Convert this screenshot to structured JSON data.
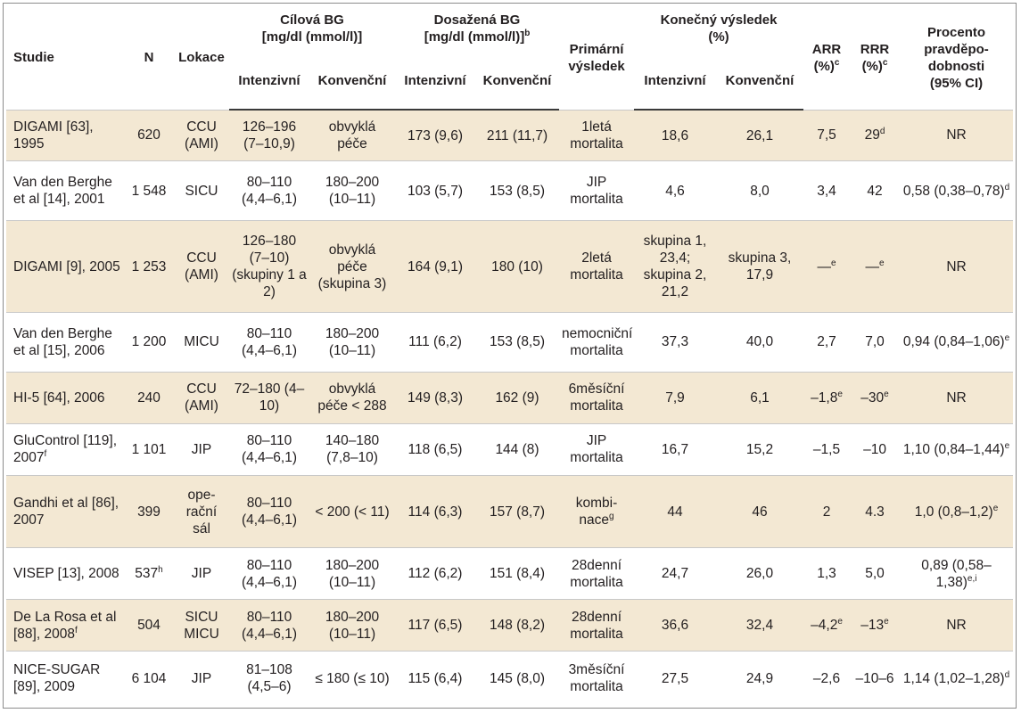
{
  "header": {
    "study": "Studie",
    "n": "N",
    "location": "Lokace",
    "target_bg": "Cílová BG",
    "target_unit": "[mg/dl (mmol/l)]",
    "achieved_bg": "Dosažená BG",
    "achieved_unit": "[mg/dl (mmol/l)]",
    "achieved_sup": "b",
    "primary_outcome": "Primární výsledek",
    "final_result": "Konečný výsledek",
    "final_unit": "(%)",
    "arr": "ARR",
    "arr_unit": "(%)",
    "arr_sup": "c",
    "rrr": "RRR",
    "rrr_unit": "(%)",
    "rrr_sup": "c",
    "prob": "Procento pravděpo- dobnosti",
    "prob_ci": "(95% CI)",
    "intensive": "Intenzivní",
    "conventional": "Konvenční"
  },
  "rows": [
    {
      "study": "DIGAMI [63], 1995",
      "study_sup": "",
      "n": "620",
      "n_sup": "",
      "loc": "CCU (AMI)",
      "t_int": "126–196 (7–10,9)",
      "t_conv": "obvyklá péče",
      "a_int": "173 (9,6)",
      "a_conv": "211 (11,7)",
      "outcome": "1letá mortalita",
      "outcome_sup": "",
      "r_int": "18,6",
      "r_conv": "26,1",
      "arr": "7,5",
      "arr_sup": "",
      "rrr": "29",
      "rrr_sup": "d",
      "prob": "NR",
      "prob_sup": ""
    },
    {
      "study": "Van den Berghe et al [14], 2001",
      "study_sup": "",
      "n": "1 548",
      "n_sup": "",
      "loc": "SICU",
      "t_int": "80–110 (4,4–6,1)",
      "t_conv": "180–200 (10–11)",
      "a_int": "103 (5,7)",
      "a_conv": "153 (8,5)",
      "outcome": "JIP mortalita",
      "outcome_sup": "",
      "r_int": "4,6",
      "r_conv": "8,0",
      "arr": "3,4",
      "arr_sup": "",
      "rrr": "42",
      "rrr_sup": "",
      "prob": "0,58 (0,38–0,78)",
      "prob_sup": "d"
    },
    {
      "study": "DIGAMI [9], 2005",
      "study_sup": "",
      "n": "1 253",
      "n_sup": "",
      "loc": "CCU (AMI)",
      "t_int": "126–180 (7–10) (skupiny 1 a 2)",
      "t_conv": "obvyklá péče (skupina 3)",
      "a_int": "164 (9,1)",
      "a_conv": "180 (10)",
      "outcome": "2letá mortalita",
      "outcome_sup": "",
      "r_int": "skupina 1, 23,4; skupina 2, 21,2",
      "r_conv": "skupina 3, 17,9",
      "arr": "—",
      "arr_sup": "e",
      "rrr": "—",
      "rrr_sup": "e",
      "prob": "NR",
      "prob_sup": ""
    },
    {
      "study": "Van den Berghe et al [15], 2006",
      "study_sup": "",
      "n": "1 200",
      "n_sup": "",
      "loc": "MICU",
      "t_int": "80–110 (4,4–6,1)",
      "t_conv": "180–200 (10–11)",
      "a_int": "111 (6,2)",
      "a_conv": "153 (8,5)",
      "outcome": "nemocniční mortalita",
      "outcome_sup": "",
      "r_int": "37,3",
      "r_conv": "40,0",
      "arr": "2,7",
      "arr_sup": "",
      "rrr": "7,0",
      "rrr_sup": "",
      "prob": "0,94 (0,84–1,06)",
      "prob_sup": "e"
    },
    {
      "study": "HI-5 [64], 2006",
      "study_sup": "",
      "n": "240",
      "n_sup": "",
      "loc": "CCU (AMI)",
      "t_int": "72–180 (4–10)",
      "t_conv": "obvyklá péče < 288",
      "a_int": "149 (8,3)",
      "a_conv": "162 (9)",
      "outcome": "6měsíční mortalita",
      "outcome_sup": "",
      "r_int": "7,9",
      "r_conv": "6,1",
      "arr": "–1,8",
      "arr_sup": "e",
      "rrr": "–30",
      "rrr_sup": "e",
      "prob": "NR",
      "prob_sup": ""
    },
    {
      "study": "GluControl [119], 2007",
      "study_sup": "f",
      "n": "1 101",
      "n_sup": "",
      "loc": "JIP",
      "t_int": "80–110 (4,4–6,1)",
      "t_conv": "140–180 (7,8–10)",
      "a_int": "118 (6,5)",
      "a_conv": "144 (8)",
      "outcome": "JIP mortalita",
      "outcome_sup": "",
      "r_int": "16,7",
      "r_conv": "15,2",
      "arr": "–1,5",
      "arr_sup": "",
      "rrr": "–10",
      "rrr_sup": "",
      "prob": "1,10 (0,84–1,44)",
      "prob_sup": "e"
    },
    {
      "study": "Gandhi et al [86], 2007",
      "study_sup": "",
      "n": "399",
      "n_sup": "",
      "loc": "ope- rační sál",
      "t_int": "80–110 (4,4–6,1)",
      "t_conv": "< 200 (< 11)",
      "a_int": "114 (6,3)",
      "a_conv": "157 (8,7)",
      "outcome": "kombi- nace",
      "outcome_sup": "g",
      "r_int": "44",
      "r_conv": "46",
      "arr": "2",
      "arr_sup": "",
      "rrr": "4.3",
      "rrr_sup": "",
      "prob": "1,0 (0,8–1,2)",
      "prob_sup": "e"
    },
    {
      "study": "VISEP [13], 2008",
      "study_sup": "",
      "n": "537",
      "n_sup": "h",
      "loc": "JIP",
      "t_int": "80–110 (4,4–6,1)",
      "t_conv": "180–200 (10–11)",
      "a_int": "112 (6,2)",
      "a_conv": "151 (8,4)",
      "outcome": "28denní mortalita",
      "outcome_sup": "",
      "r_int": "24,7",
      "r_conv": "26,0",
      "arr": "1,3",
      "arr_sup": "",
      "rrr": "5,0",
      "rrr_sup": "",
      "prob": "0,89 (0,58–1,38)",
      "prob_sup": "e,i"
    },
    {
      "study": "De La Rosa et al [88], 2008",
      "study_sup": "f",
      "n": "504",
      "n_sup": "",
      "loc": "SICU MICU",
      "t_int": "80–110 (4,4–6,1)",
      "t_conv": "180–200 (10–11)",
      "a_int": "117 (6,5)",
      "a_conv": "148 (8,2)",
      "outcome": "28denní mortalita",
      "outcome_sup": "",
      "r_int": "36,6",
      "r_conv": "32,4",
      "arr": "–4,2",
      "arr_sup": "e",
      "rrr": "–13",
      "rrr_sup": "e",
      "prob": "NR",
      "prob_sup": ""
    },
    {
      "study": "NICE-SUGAR [89], 2009",
      "study_sup": "",
      "n": "6 104",
      "n_sup": "",
      "loc": "JIP",
      "t_int": "81–108 (4,5–6)",
      "t_conv": "≤ 180 (≤ 10)",
      "a_int": "115 (6,4)",
      "a_conv": "145 (8,0)",
      "outcome": "3měsíční mortalita",
      "outcome_sup": "",
      "r_int": "27,5",
      "r_conv": "24,9",
      "arr": "–2,6",
      "arr_sup": "",
      "rrr": "–10–6",
      "rrr_sup": "",
      "prob": "1,14 (1,02–1,28)",
      "prob_sup": "d"
    }
  ]
}
